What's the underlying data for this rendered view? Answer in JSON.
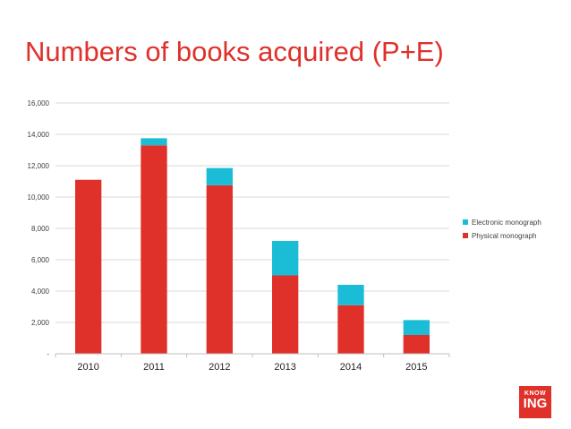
{
  "title": "Numbers of books acquired (P+E)",
  "logo": {
    "top": "KNOW",
    "bottom": "ING"
  },
  "colors": {
    "title": "#e0302a",
    "physical": "#e0302a",
    "electronic": "#1bbdd6",
    "grid": "#d9d9d9",
    "axis": "#bfbfbf"
  },
  "chart_data": {
    "type": "bar",
    "stacked": true,
    "categories": [
      "2010",
      "2011",
      "2012",
      "2013",
      "2014",
      "2015"
    ],
    "series": [
      {
        "name": "Physical monograph",
        "values": [
          11100,
          13300,
          10750,
          5000,
          3100,
          1200
        ]
      },
      {
        "name": "Electronic monograph",
        "values": [
          0,
          450,
          1100,
          2200,
          1300,
          950
        ]
      }
    ],
    "ylim": [
      0,
      16000
    ],
    "yticks": [
      0,
      2000,
      4000,
      6000,
      8000,
      10000,
      12000,
      14000,
      16000
    ],
    "ytick_labels": [
      "-",
      "2,000",
      "4,000",
      "6,000",
      "8,000",
      "10,000",
      "12,000",
      "14,000",
      "16,000"
    ],
    "legend": {
      "placement": "right",
      "entries": [
        "Electronic monograph",
        "Physical monograph"
      ]
    },
    "grid": true
  }
}
